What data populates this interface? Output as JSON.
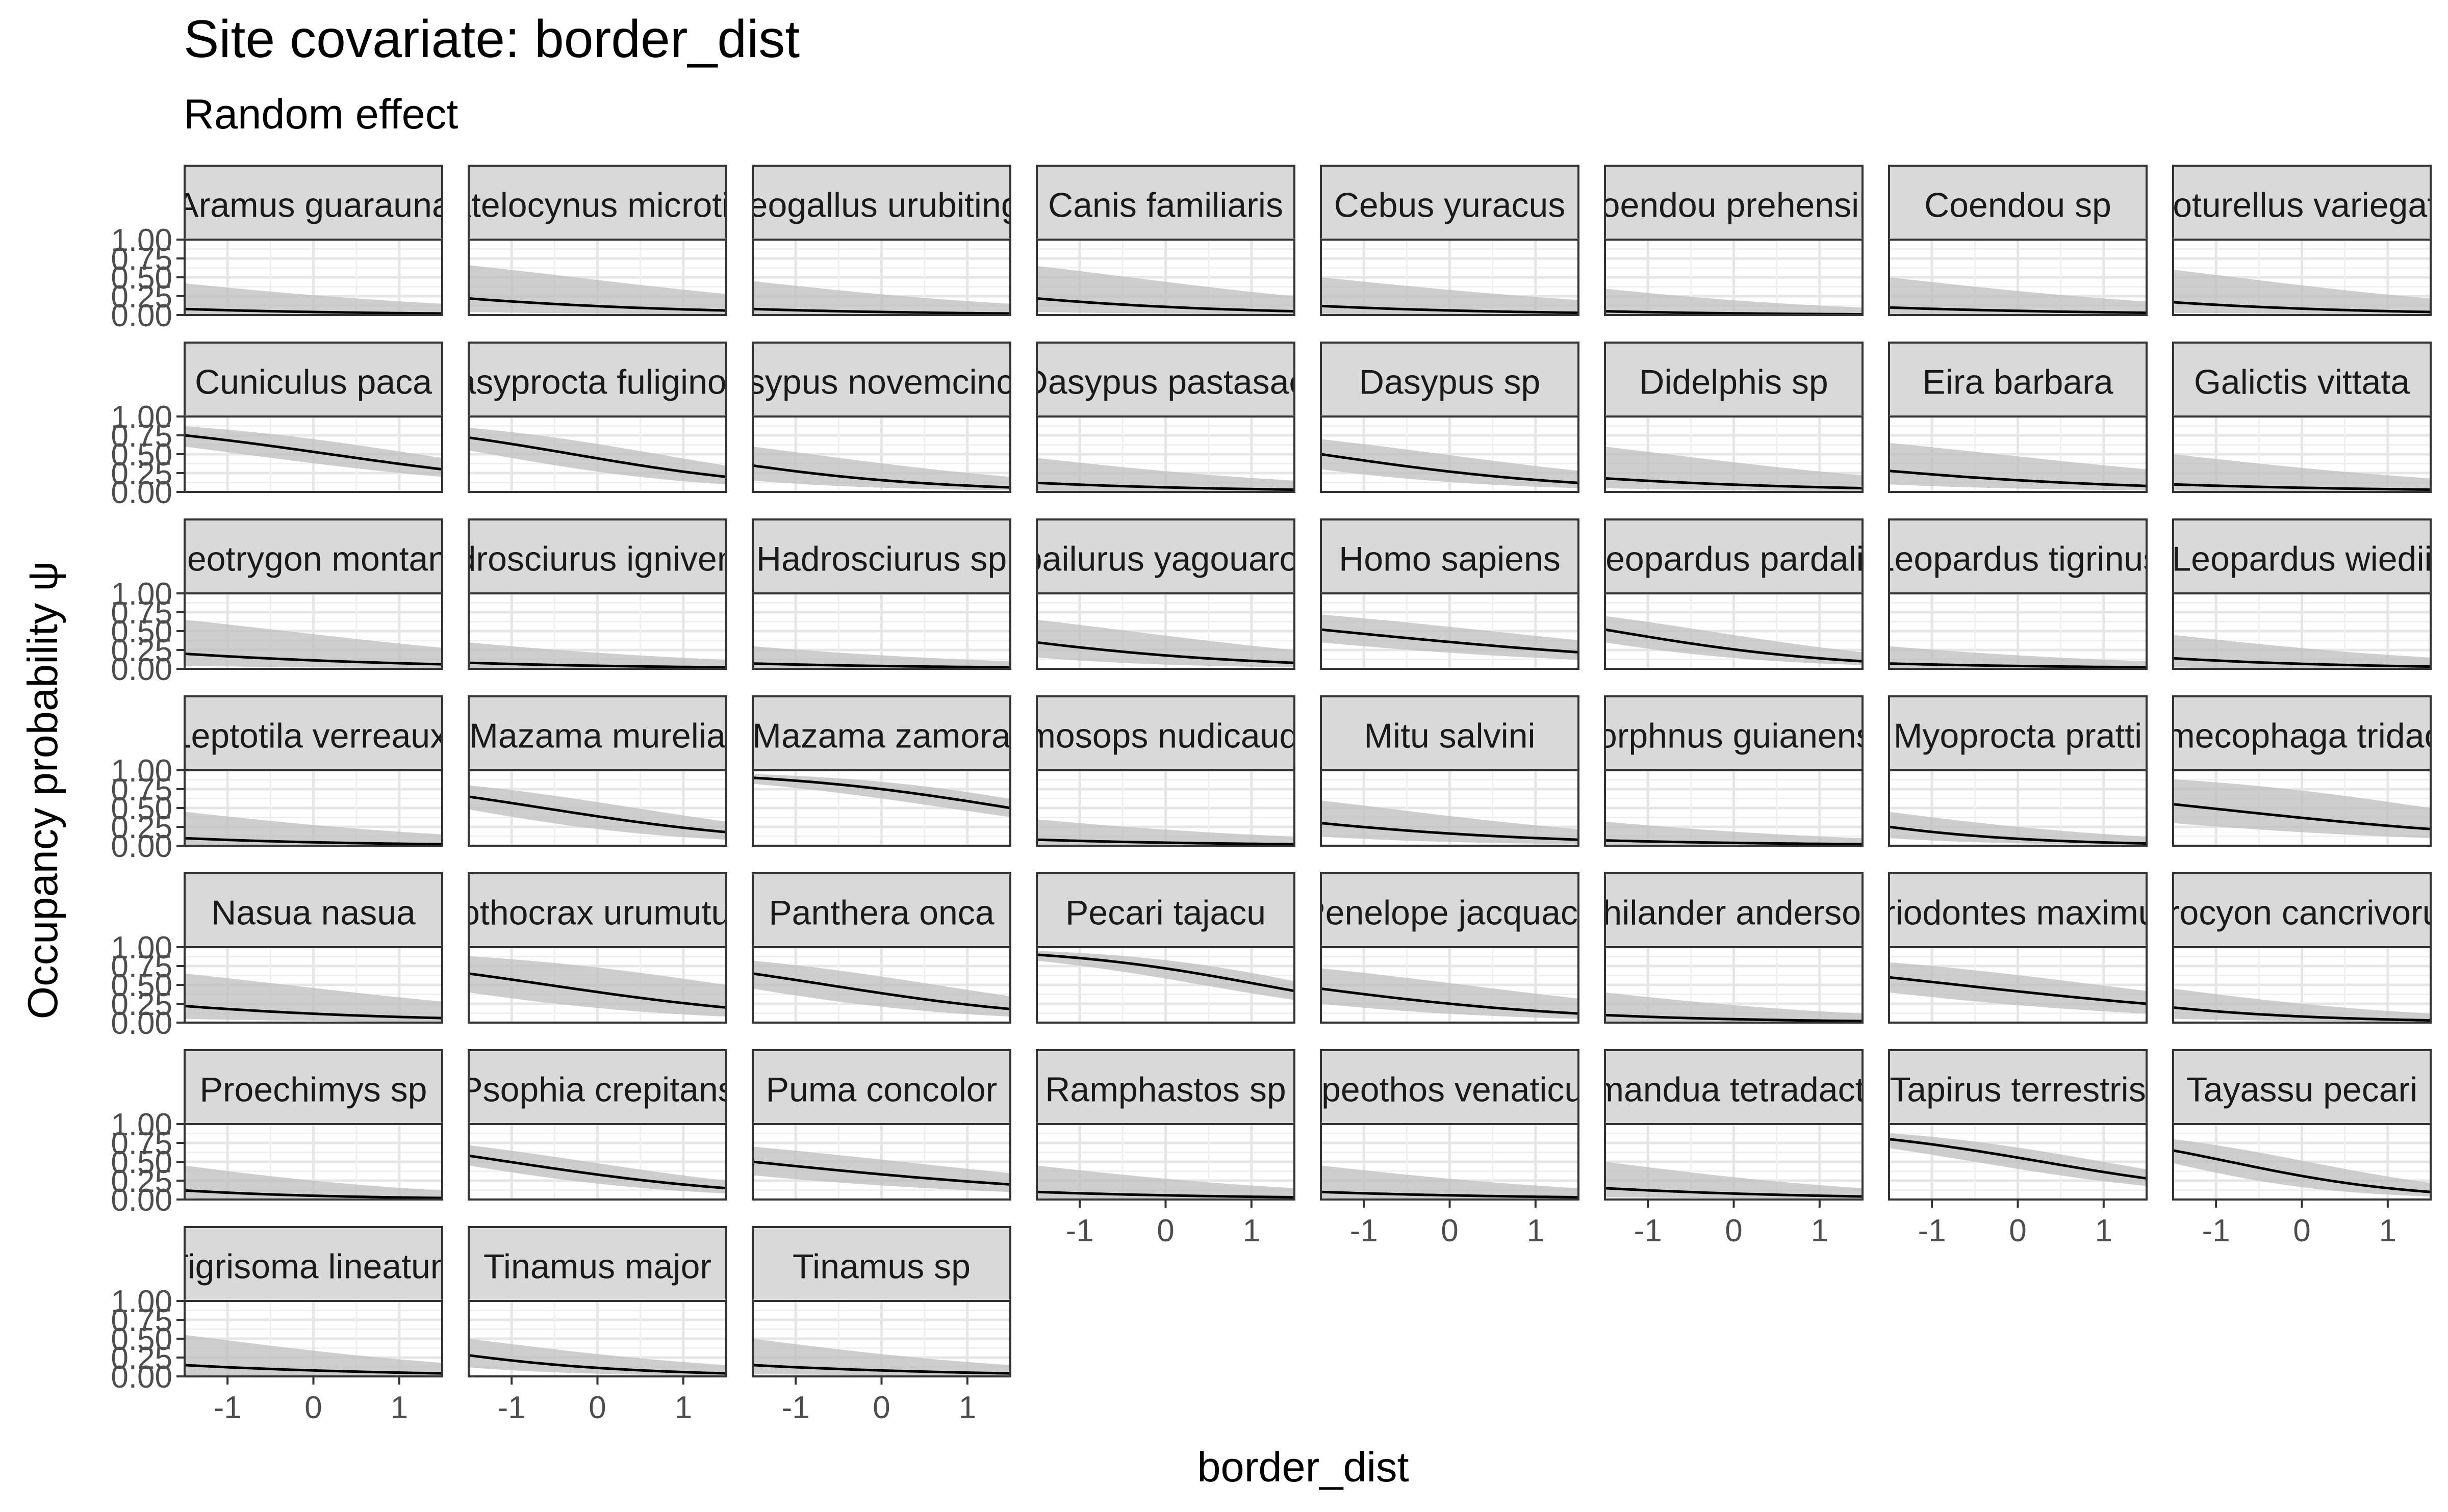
{
  "chart_data": {
    "type": "line",
    "title": "Site covariate: border_dist",
    "subtitle": "Random effect",
    "xlabel": "border_dist",
    "ylabel": "Occupancy probability  ψ",
    "xlim": [
      -1.5,
      1.5
    ],
    "ylim": [
      0,
      1
    ],
    "x_ticks": [
      -1,
      0,
      1
    ],
    "x_tick_labels": [
      "-1",
      "0",
      "1"
    ],
    "y_ticks": [
      0,
      0.25,
      0.5,
      0.75,
      1
    ],
    "y_tick_labels": [
      "0.00",
      "0.25",
      "0.50",
      "0.75",
      "1.00"
    ],
    "grid": true,
    "line_color": "#000000",
    "band_color": "#bdbdbd",
    "strip_color": "#d9d9d9",
    "panels": [
      {
        "label": "Aramus guarauna",
        "y_start": 0.08,
        "y_end": 0.02,
        "lo_start": 0.01,
        "lo_end": 0.0,
        "hi_start": 0.42,
        "hi_end": 0.15
      },
      {
        "label": "Atelocynus microtis",
        "y_start": 0.22,
        "y_end": 0.06,
        "lo_start": 0.04,
        "lo_end": 0.01,
        "hi_start": 0.66,
        "hi_end": 0.28
      },
      {
        "label": "Neogallus urubitinga",
        "y_start": 0.08,
        "y_end": 0.02,
        "lo_start": 0.01,
        "lo_end": 0.0,
        "hi_start": 0.45,
        "hi_end": 0.15
      },
      {
        "label": "Canis familiaris",
        "y_start": 0.22,
        "y_end": 0.05,
        "lo_start": 0.04,
        "lo_end": 0.01,
        "hi_start": 0.65,
        "hi_end": 0.25
      },
      {
        "label": "Cebus yuracus",
        "y_start": 0.12,
        "y_end": 0.03,
        "lo_start": 0.02,
        "lo_end": 0.0,
        "hi_start": 0.5,
        "hi_end": 0.2
      },
      {
        "label": "Coendou prehensilis",
        "y_start": 0.05,
        "y_end": 0.01,
        "lo_start": 0.01,
        "lo_end": 0.0,
        "hi_start": 0.35,
        "hi_end": 0.1
      },
      {
        "label": "Coendou sp",
        "y_start": 0.1,
        "y_end": 0.03,
        "lo_start": 0.02,
        "lo_end": 0.0,
        "hi_start": 0.5,
        "hi_end": 0.18
      },
      {
        "label": "Cyoturellus variegatus",
        "y_start": 0.17,
        "y_end": 0.04,
        "lo_start": 0.03,
        "lo_end": 0.01,
        "hi_start": 0.6,
        "hi_end": 0.22
      },
      {
        "label": "Cuniculus paca",
        "y_start": 0.75,
        "y_end": 0.3,
        "lo_start": 0.6,
        "lo_end": 0.2,
        "hi_start": 0.87,
        "hi_end": 0.45
      },
      {
        "label": "Dasyprocta fuliginosa",
        "y_start": 0.72,
        "y_end": 0.2,
        "lo_start": 0.55,
        "lo_end": 0.1,
        "hi_start": 0.85,
        "hi_end": 0.35
      },
      {
        "label": "Dasypus novemcinctus",
        "y_start": 0.35,
        "y_end": 0.06,
        "lo_start": 0.15,
        "lo_end": 0.02,
        "hi_start": 0.6,
        "hi_end": 0.2
      },
      {
        "label": "Dasypus pastasae",
        "y_start": 0.12,
        "y_end": 0.03,
        "lo_start": 0.02,
        "lo_end": 0.0,
        "hi_start": 0.45,
        "hi_end": 0.15
      },
      {
        "label": "Dasypus sp",
        "y_start": 0.5,
        "y_end": 0.12,
        "lo_start": 0.3,
        "lo_end": 0.05,
        "hi_start": 0.7,
        "hi_end": 0.28
      },
      {
        "label": "Didelphis sp",
        "y_start": 0.18,
        "y_end": 0.05,
        "lo_start": 0.05,
        "lo_end": 0.01,
        "hi_start": 0.6,
        "hi_end": 0.22
      },
      {
        "label": "Eira barbara",
        "y_start": 0.28,
        "y_end": 0.08,
        "lo_start": 0.1,
        "lo_end": 0.02,
        "hi_start": 0.65,
        "hi_end": 0.3
      },
      {
        "label": "Galictis vittata",
        "y_start": 0.1,
        "y_end": 0.03,
        "lo_start": 0.02,
        "lo_end": 0.0,
        "hi_start": 0.5,
        "hi_end": 0.18
      },
      {
        "label": "Geotrygon montana",
        "y_start": 0.2,
        "y_end": 0.06,
        "lo_start": 0.04,
        "lo_end": 0.01,
        "hi_start": 0.65,
        "hi_end": 0.28
      },
      {
        "label": "Hadrosciurus igniventris",
        "y_start": 0.08,
        "y_end": 0.02,
        "lo_start": 0.01,
        "lo_end": 0.0,
        "hi_start": 0.35,
        "hi_end": 0.12
      },
      {
        "label": "Hadrosciurus sp",
        "y_start": 0.07,
        "y_end": 0.02,
        "lo_start": 0.01,
        "lo_end": 0.0,
        "hi_start": 0.3,
        "hi_end": 0.1
      },
      {
        "label": "Herpailurus yagouaroundi",
        "y_start": 0.35,
        "y_end": 0.08,
        "lo_start": 0.15,
        "lo_end": 0.02,
        "hi_start": 0.65,
        "hi_end": 0.25
      },
      {
        "label": "Homo sapiens",
        "y_start": 0.52,
        "y_end": 0.22,
        "lo_start": 0.35,
        "lo_end": 0.12,
        "hi_start": 0.72,
        "hi_end": 0.38
      },
      {
        "label": "Leopardus pardalis",
        "y_start": 0.52,
        "y_end": 0.1,
        "lo_start": 0.35,
        "lo_end": 0.05,
        "hi_start": 0.7,
        "hi_end": 0.22
      },
      {
        "label": "Leopardus tigrinus",
        "y_start": 0.07,
        "y_end": 0.02,
        "lo_start": 0.01,
        "lo_end": 0.0,
        "hi_start": 0.3,
        "hi_end": 0.1
      },
      {
        "label": "Leopardus wiedii",
        "y_start": 0.14,
        "y_end": 0.03,
        "lo_start": 0.02,
        "lo_end": 0.0,
        "hi_start": 0.45,
        "hi_end": 0.15
      },
      {
        "label": "Leptotila verreauxi",
        "y_start": 0.1,
        "y_end": 0.02,
        "lo_start": 0.01,
        "lo_end": 0.0,
        "hi_start": 0.45,
        "hi_end": 0.15
      },
      {
        "label": "Mazama murelia",
        "y_start": 0.65,
        "y_end": 0.18,
        "lo_start": 0.48,
        "lo_end": 0.08,
        "hi_start": 0.8,
        "hi_end": 0.32
      },
      {
        "label": "Mazama zamora",
        "y_start": 0.9,
        "y_end": 0.5,
        "lo_start": 0.82,
        "lo_end": 0.38,
        "hi_start": 0.95,
        "hi_end": 0.62
      },
      {
        "label": "Marmosops nudicaudatus",
        "y_start": 0.08,
        "y_end": 0.02,
        "lo_start": 0.01,
        "lo_end": 0.0,
        "hi_start": 0.35,
        "hi_end": 0.12
      },
      {
        "label": "Mitu salvini",
        "y_start": 0.3,
        "y_end": 0.08,
        "lo_start": 0.12,
        "lo_end": 0.02,
        "hi_start": 0.6,
        "hi_end": 0.22
      },
      {
        "label": "Morphnus guianensis",
        "y_start": 0.07,
        "y_end": 0.02,
        "lo_start": 0.01,
        "lo_end": 0.0,
        "hi_start": 0.32,
        "hi_end": 0.1
      },
      {
        "label": "Myoprocta pratti",
        "y_start": 0.25,
        "y_end": 0.03,
        "lo_start": 0.1,
        "lo_end": 0.01,
        "hi_start": 0.45,
        "hi_end": 0.12
      },
      {
        "label": "Myrmecophaga tridactyla",
        "y_start": 0.55,
        "y_end": 0.22,
        "lo_start": 0.3,
        "lo_end": 0.1,
        "hi_start": 0.88,
        "hi_end": 0.5
      },
      {
        "label": "Nasua nasua",
        "y_start": 0.22,
        "y_end": 0.06,
        "lo_start": 0.05,
        "lo_end": 0.01,
        "hi_start": 0.65,
        "hi_end": 0.28
      },
      {
        "label": "Nothocrax urumutum",
        "y_start": 0.65,
        "y_end": 0.2,
        "lo_start": 0.4,
        "lo_end": 0.08,
        "hi_start": 0.88,
        "hi_end": 0.5
      },
      {
        "label": "Panthera onca",
        "y_start": 0.65,
        "y_end": 0.18,
        "lo_start": 0.45,
        "lo_end": 0.08,
        "hi_start": 0.82,
        "hi_end": 0.35
      },
      {
        "label": "Pecari tajacu",
        "y_start": 0.9,
        "y_end": 0.42,
        "lo_start": 0.82,
        "lo_end": 0.3,
        "hi_start": 0.95,
        "hi_end": 0.55
      },
      {
        "label": "Penelope jacquacu",
        "y_start": 0.45,
        "y_end": 0.12,
        "lo_start": 0.25,
        "lo_end": 0.05,
        "hi_start": 0.72,
        "hi_end": 0.32
      },
      {
        "label": "Philander andersoni",
        "y_start": 0.1,
        "y_end": 0.02,
        "lo_start": 0.01,
        "lo_end": 0.0,
        "hi_start": 0.4,
        "hi_end": 0.12
      },
      {
        "label": "Priodontes maximus",
        "y_start": 0.6,
        "y_end": 0.25,
        "lo_start": 0.4,
        "lo_end": 0.12,
        "hi_start": 0.8,
        "hi_end": 0.42
      },
      {
        "label": "Procyon cancrivorus",
        "y_start": 0.2,
        "y_end": 0.03,
        "lo_start": 0.05,
        "lo_end": 0.01,
        "hi_start": 0.45,
        "hi_end": 0.12
      },
      {
        "label": "Proechimys sp",
        "y_start": 0.12,
        "y_end": 0.02,
        "lo_start": 0.02,
        "lo_end": 0.0,
        "hi_start": 0.45,
        "hi_end": 0.12
      },
      {
        "label": "Psophia crepitans",
        "y_start": 0.58,
        "y_end": 0.15,
        "lo_start": 0.45,
        "lo_end": 0.08,
        "hi_start": 0.72,
        "hi_end": 0.25
      },
      {
        "label": "Puma concolor",
        "y_start": 0.5,
        "y_end": 0.2,
        "lo_start": 0.32,
        "lo_end": 0.1,
        "hi_start": 0.7,
        "hi_end": 0.35
      },
      {
        "label": "Ramphastos sp",
        "y_start": 0.1,
        "y_end": 0.03,
        "lo_start": 0.02,
        "lo_end": 0.0,
        "hi_start": 0.45,
        "hi_end": 0.15
      },
      {
        "label": "Speothos venaticus",
        "y_start": 0.1,
        "y_end": 0.03,
        "lo_start": 0.02,
        "lo_end": 0.0,
        "hi_start": 0.45,
        "hi_end": 0.15
      },
      {
        "label": "Tamandua tetradactyla",
        "y_start": 0.15,
        "y_end": 0.04,
        "lo_start": 0.03,
        "lo_end": 0.01,
        "hi_start": 0.5,
        "hi_end": 0.15
      },
      {
        "label": "Tapirus terrestris",
        "y_start": 0.8,
        "y_end": 0.28,
        "lo_start": 0.68,
        "lo_end": 0.18,
        "hi_start": 0.88,
        "hi_end": 0.4
      },
      {
        "label": "Tayassu pecari",
        "y_start": 0.65,
        "y_end": 0.1,
        "lo_start": 0.48,
        "lo_end": 0.04,
        "hi_start": 0.8,
        "hi_end": 0.22
      },
      {
        "label": "Tigrisoma lineatum",
        "y_start": 0.15,
        "y_end": 0.04,
        "lo_start": 0.02,
        "lo_end": 0.01,
        "hi_start": 0.55,
        "hi_end": 0.18
      },
      {
        "label": "Tinamus major",
        "y_start": 0.28,
        "y_end": 0.04,
        "lo_start": 0.12,
        "lo_end": 0.01,
        "hi_start": 0.5,
        "hi_end": 0.15
      },
      {
        "label": "Tinamus sp",
        "y_start": 0.15,
        "y_end": 0.04,
        "lo_start": 0.03,
        "lo_end": 0.01,
        "hi_start": 0.5,
        "hi_end": 0.15
      }
    ]
  }
}
